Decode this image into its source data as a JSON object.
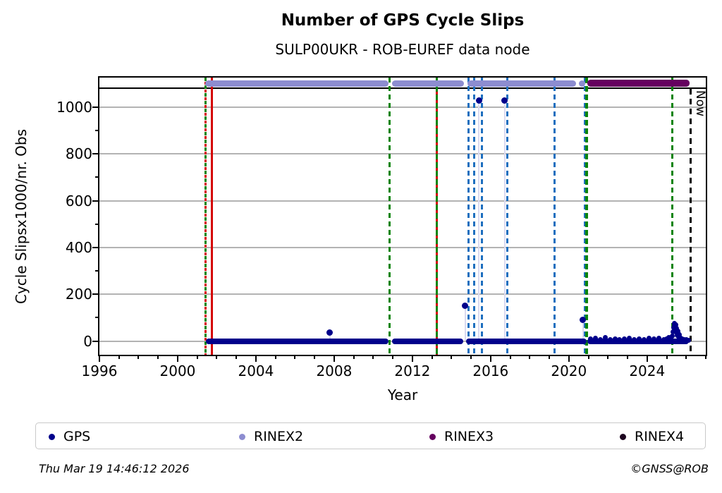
{
  "title": "Number of GPS Cycle Slips",
  "subtitle": "SULP00UKR - ROB-EUREF data node",
  "footer": {
    "timestamp": "Thu Mar 19 14:46:12 2026",
    "credit": "©GNSS@ROB"
  },
  "colors": {
    "gps": "#00008b",
    "rinex2": "#8d8dd0",
    "rinex3": "#65005f",
    "rinex4": "#1d041f",
    "green": "#0a840a",
    "red": "#d40000",
    "blue": "#1e6fbf",
    "grid": "#b3b3b3",
    "now": "#000000"
  },
  "legend": {
    "items": [
      {
        "label": "GPS",
        "color_key": "gps"
      },
      {
        "label": "RINEX2",
        "color_key": "rinex2"
      },
      {
        "label": "RINEX3",
        "color_key": "rinex3"
      },
      {
        "label": "RINEX4",
        "color_key": "rinex4"
      }
    ]
  },
  "chart_data": {
    "type": "scatter",
    "title": "Number of GPS Cycle Slips",
    "subtitle": "SULP00UKR - ROB-EUREF data node",
    "xlabel": "Year",
    "ylabel": "Cycle Slipsx1000/nr. Obs",
    "xlim": [
      1996,
      2027.0
    ],
    "ylim": [
      -59,
      1084
    ],
    "grid": "horizontal-major-only",
    "legend_position": "bottom",
    "x_major_ticks": [
      1996,
      2000,
      2004,
      2008,
      2012,
      2016,
      2020,
      2024
    ],
    "x_minor_step_years": 1,
    "y_major_ticks": [
      0,
      200,
      400,
      600,
      800,
      1000
    ],
    "y_minor_ticks": [
      100,
      300,
      500,
      700,
      900
    ],
    "now_line": {
      "year": 2026.21,
      "label": "Now"
    },
    "event_lines": [
      {
        "year": 2001.42,
        "style": "green_red_dashed"
      },
      {
        "year": 2001.75,
        "style": "red_solid"
      },
      {
        "year": 2010.85,
        "style": "green_dashed"
      },
      {
        "year": 2013.25,
        "style": "green_red_solid"
      },
      {
        "year": 2014.88,
        "style": "blue_dashed"
      },
      {
        "year": 2015.17,
        "style": "blue_dashed"
      },
      {
        "year": 2015.55,
        "style": "blue_dashed"
      },
      {
        "year": 2016.85,
        "style": "blue_dashed"
      },
      {
        "year": 2019.25,
        "style": "blue_dashed"
      },
      {
        "year": 2020.8,
        "style": "blue_dashed"
      },
      {
        "year": 2020.92,
        "style": "green_dashed_bold"
      },
      {
        "year": 2025.3,
        "style": "green_dashed"
      }
    ],
    "rinex2_intervals": [
      [
        2001.4,
        2010.78
      ],
      [
        2010.95,
        2014.62
      ],
      [
        2014.8,
        2020.35
      ],
      [
        2020.5,
        2020.85
      ]
    ],
    "rinex3_intervals": [
      [
        2020.95,
        2026.17
      ]
    ],
    "gps_baseline_value": 0,
    "gps_baseline_intervals": [
      [
        2001.45,
        2010.78
      ],
      [
        2010.95,
        2014.6
      ],
      [
        2014.75,
        2020.9
      ],
      [
        2020.95,
        2026.15
      ]
    ],
    "gps_outliers": [
      {
        "year": 2007.78,
        "value": 35
      },
      {
        "year": 2014.7,
        "value": 150
      },
      {
        "year": 2015.4,
        "value": 1028
      },
      {
        "year": 2016.72,
        "value": 1028
      },
      {
        "year": 2020.72,
        "value": 92
      }
    ],
    "gps_noise_points": [
      {
        "year": 2021.1,
        "value": 8
      },
      {
        "year": 2021.35,
        "value": 12
      },
      {
        "year": 2021.6,
        "value": 6
      },
      {
        "year": 2021.85,
        "value": 14
      },
      {
        "year": 2022.1,
        "value": 7
      },
      {
        "year": 2022.35,
        "value": 10
      },
      {
        "year": 2022.6,
        "value": 6
      },
      {
        "year": 2022.85,
        "value": 9
      },
      {
        "year": 2023.1,
        "value": 12
      },
      {
        "year": 2023.35,
        "value": 7
      },
      {
        "year": 2023.6,
        "value": 10
      },
      {
        "year": 2023.85,
        "value": 6
      },
      {
        "year": 2024.1,
        "value": 13
      },
      {
        "year": 2024.35,
        "value": 8
      },
      {
        "year": 2024.6,
        "value": 11
      },
      {
        "year": 2024.85,
        "value": 7
      },
      {
        "year": 2025.0,
        "value": 10
      },
      {
        "year": 2025.1,
        "value": 16
      },
      {
        "year": 2025.2,
        "value": 14
      },
      {
        "year": 2025.3,
        "value": 22
      },
      {
        "year": 2025.33,
        "value": 40
      },
      {
        "year": 2025.36,
        "value": 58
      },
      {
        "year": 2025.38,
        "value": 70
      },
      {
        "year": 2025.4,
        "value": 75
      },
      {
        "year": 2025.43,
        "value": 62
      },
      {
        "year": 2025.45,
        "value": 48
      },
      {
        "year": 2025.47,
        "value": 68
      },
      {
        "year": 2025.5,
        "value": 55
      },
      {
        "year": 2025.52,
        "value": 35
      },
      {
        "year": 2025.55,
        "value": 24
      },
      {
        "year": 2025.57,
        "value": 42
      },
      {
        "year": 2025.6,
        "value": 30
      },
      {
        "year": 2025.63,
        "value": 18
      },
      {
        "year": 2025.66,
        "value": 26
      },
      {
        "year": 2025.7,
        "value": 14
      },
      {
        "year": 2025.75,
        "value": 10
      },
      {
        "year": 2025.8,
        "value": 8
      },
      {
        "year": 2025.9,
        "value": 6
      },
      {
        "year": 2026.0,
        "value": 5
      },
      {
        "year": 2026.1,
        "value": 4
      }
    ]
  }
}
